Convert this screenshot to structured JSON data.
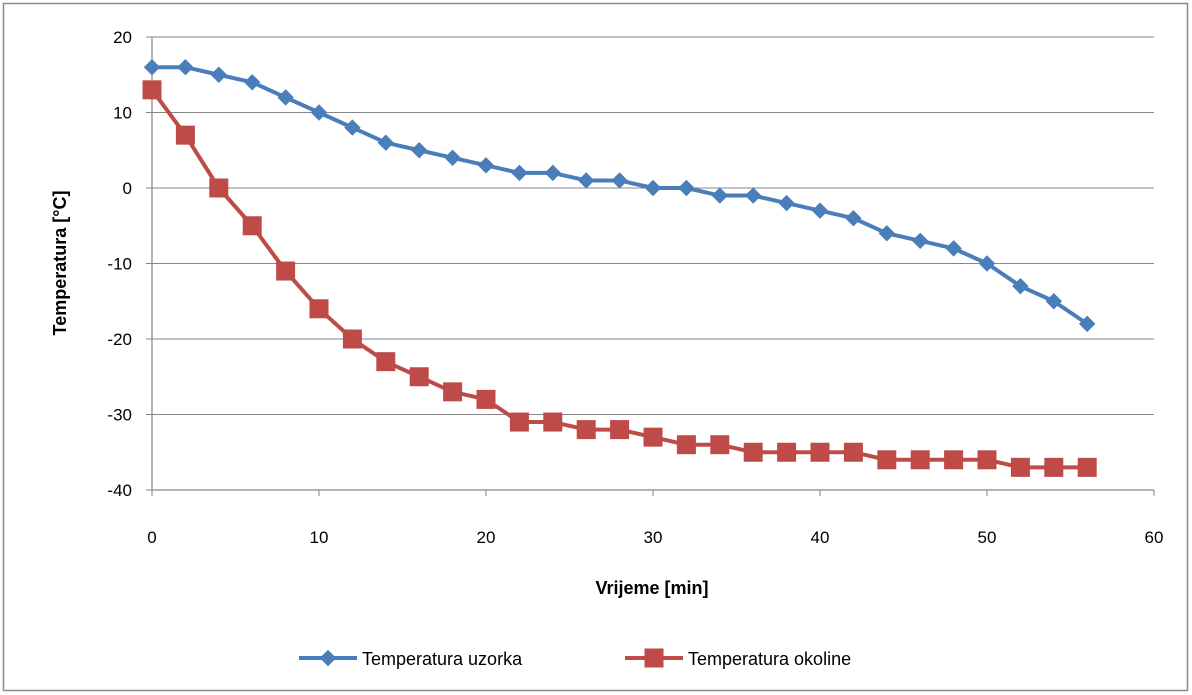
{
  "chart_data": {
    "type": "line",
    "xlabel": "Vrijeme [min]",
    "ylabel": "Temperatura [°C]",
    "xlim": [
      0,
      60
    ],
    "ylim": [
      -40,
      20
    ],
    "x_ticks": [
      0,
      10,
      20,
      30,
      40,
      50,
      60
    ],
    "y_ticks": [
      20,
      10,
      0,
      -10,
      -20,
      -30,
      -40
    ],
    "grid": "horizontal",
    "legend_position": "bottom",
    "x": [
      0,
      2,
      4,
      6,
      8,
      10,
      12,
      14,
      16,
      18,
      20,
      22,
      24,
      26,
      28,
      30,
      32,
      34,
      36,
      38,
      40,
      42,
      44,
      46,
      48,
      50,
      52,
      54,
      56
    ],
    "series": [
      {
        "name": "Temperatura uzorka",
        "color": "#4a7ebb",
        "marker": "diamond",
        "values": [
          16,
          16,
          15,
          14,
          12,
          10,
          8,
          6,
          5,
          4,
          3,
          2,
          2,
          1,
          1,
          0,
          0,
          -1,
          -1,
          -2,
          -3,
          -4,
          -6,
          -7,
          -8,
          -10,
          -13,
          -15,
          -18
        ]
      },
      {
        "name": "Temperatura okoline",
        "color": "#be4b48",
        "marker": "square",
        "values": [
          13,
          7,
          0,
          -5,
          -11,
          -16,
          -20,
          -23,
          -25,
          -27,
          -28,
          -31,
          -31,
          -32,
          -32,
          -33,
          -34,
          -34,
          -35,
          -35,
          -35,
          -35,
          -36,
          -36,
          -36,
          -36,
          -37,
          -37,
          -37
        ]
      }
    ]
  }
}
